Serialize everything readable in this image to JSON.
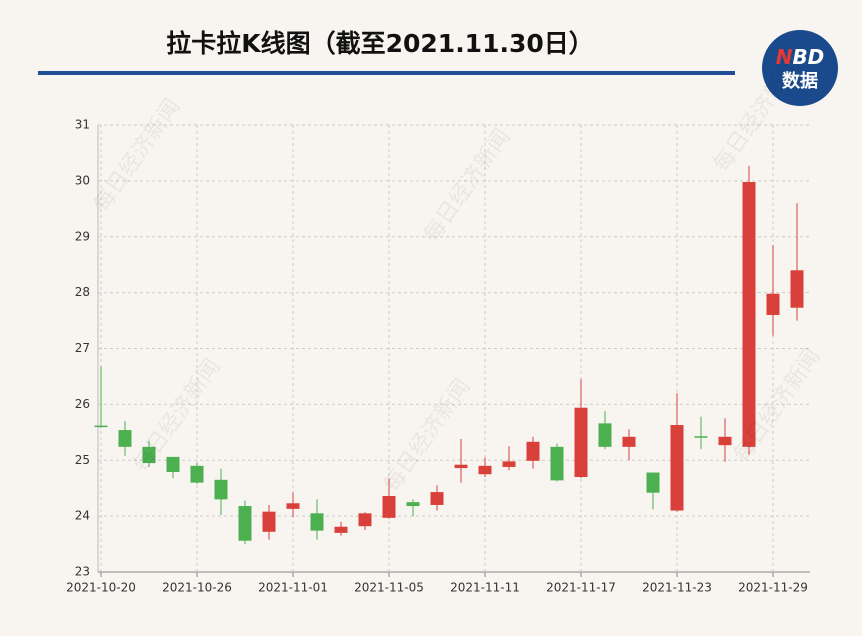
{
  "header": {
    "title": "拉卡拉K线图（截至2021.11.30日）"
  },
  "logo": {
    "brand_accent": "N",
    "brand_rest": "BD",
    "label": "数据"
  },
  "watermark": "每日经济新闻",
  "chart_data": {
    "type": "candlestick",
    "categories": [
      "2021-10-20",
      null,
      null,
      null,
      "2021-10-26",
      null,
      null,
      null,
      "2021-11-01",
      null,
      null,
      null,
      "2021-11-05",
      null,
      null,
      null,
      "2021-11-11",
      null,
      null,
      null,
      "2021-11-17",
      null,
      null,
      null,
      "2021-11-23",
      null,
      null,
      null,
      "2021-11-29",
      null
    ],
    "open": [
      25.62,
      25.54,
      25.24,
      25.06,
      24.9,
      24.65,
      24.18,
      23.72,
      24.13,
      24.05,
      23.7,
      23.82,
      23.97,
      24.25,
      24.2,
      24.86,
      24.75,
      24.88,
      24.99,
      25.24,
      24.7,
      25.66,
      25.24,
      24.78,
      24.1,
      25.43,
      25.27,
      25.24,
      27.6,
      27.73
    ],
    "close": [
      25.6,
      25.24,
      24.95,
      24.79,
      24.6,
      24.3,
      23.56,
      24.08,
      24.23,
      23.74,
      23.81,
      24.05,
      24.36,
      24.18,
      24.43,
      24.92,
      24.9,
      24.98,
      25.33,
      24.64,
      25.94,
      25.24,
      25.42,
      24.42,
      25.63,
      25.42,
      25.42,
      29.98,
      27.98,
      28.4
    ],
    "low": [
      25.58,
      25.08,
      24.88,
      24.68,
      24.58,
      24.02,
      23.5,
      23.58,
      23.98,
      23.58,
      23.65,
      23.75,
      23.95,
      24.0,
      24.1,
      24.6,
      24.7,
      24.82,
      24.85,
      24.62,
      24.68,
      25.2,
      25.0,
      24.12,
      24.08,
      25.2,
      24.97,
      25.1,
      27.23,
      27.5
    ],
    "high": [
      26.68,
      25.7,
      25.35,
      25.06,
      24.95,
      24.85,
      24.28,
      24.2,
      24.42,
      24.3,
      23.9,
      24.07,
      24.68,
      24.3,
      24.55,
      25.38,
      25.05,
      25.25,
      25.42,
      25.3,
      26.45,
      25.88,
      25.55,
      24.78,
      26.2,
      25.78,
      25.75,
      30.27,
      28.85,
      29.6
    ],
    "up_color": "#d9403a",
    "down_color": "#4caf50",
    "ylim": [
      23,
      31
    ],
    "yticks": [
      23,
      24,
      25,
      26,
      27,
      28,
      29,
      30,
      31
    ],
    "grid": true
  }
}
